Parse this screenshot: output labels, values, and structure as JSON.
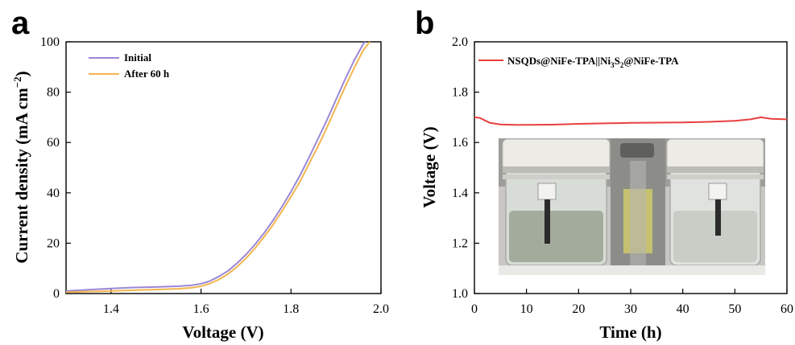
{
  "chart_data": [
    {
      "panel": "a",
      "type": "line",
      "xlabel": "Voltage (V)",
      "ylabel": "Current density (mA cm⁻²)",
      "xlim": [
        1.3,
        2.0
      ],
      "ylim": [
        0,
        100
      ],
      "x_ticks": [
        "1.4",
        "1.6",
        "1.8",
        "2.0"
      ],
      "y_ticks": [
        "0",
        "20",
        "40",
        "60",
        "80",
        "100"
      ],
      "legend_position": "top-left",
      "series": [
        {
          "name": "Initial",
          "color": "#9b86d6",
          "x": [
            1.3,
            1.35,
            1.4,
            1.45,
            1.5,
            1.55,
            1.58,
            1.6,
            1.62,
            1.64,
            1.66,
            1.68,
            1.7,
            1.72,
            1.74,
            1.76,
            1.78,
            1.8,
            1.82,
            1.84,
            1.86,
            1.88,
            1.9,
            1.92,
            1.94,
            1.96,
            1.965
          ],
          "y": [
            1.0,
            1.5,
            2.0,
            2.4,
            2.6,
            2.9,
            3.3,
            3.9,
            5.0,
            6.8,
            9.0,
            12.0,
            15.5,
            19.5,
            24.0,
            29.0,
            34.5,
            40.5,
            47.0,
            54.0,
            61.5,
            69.0,
            77.0,
            85.0,
            92.5,
            99.0,
            100.0
          ]
        },
        {
          "name": "After 60 h",
          "color": "#f3b54e",
          "x": [
            1.3,
            1.35,
            1.4,
            1.45,
            1.5,
            1.55,
            1.58,
            1.6,
            1.62,
            1.64,
            1.66,
            1.68,
            1.7,
            1.72,
            1.74,
            1.76,
            1.78,
            1.8,
            1.82,
            1.84,
            1.86,
            1.88,
            1.9,
            1.92,
            1.94,
            1.96,
            1.975
          ],
          "y": [
            0.5,
            0.8,
            1.0,
            1.3,
            1.6,
            1.9,
            2.3,
            2.9,
            4.0,
            5.6,
            7.8,
            10.6,
            14.0,
            18.0,
            22.5,
            27.3,
            32.7,
            38.5,
            44.5,
            51.5,
            58.5,
            66.0,
            74.0,
            82.0,
            89.5,
            96.5,
            100.0
          ]
        }
      ]
    },
    {
      "panel": "b",
      "type": "line",
      "xlabel": "Time (h)",
      "ylabel": "Voltage (V)",
      "xlim": [
        0,
        60
      ],
      "ylim": [
        1.0,
        2.0
      ],
      "x_ticks": [
        "0",
        "10",
        "20",
        "30",
        "40",
        "50",
        "60"
      ],
      "y_ticks": [
        "1.0",
        "1.2",
        "1.4",
        "1.6",
        "1.8",
        "2.0"
      ],
      "legend_position": "top-left",
      "series": [
        {
          "name": "NSQDs@NiFe-TPA||Ni₃S₂@NiFe-TPA",
          "color": "#e8403f",
          "x": [
            0,
            1,
            2,
            3,
            5,
            8,
            10,
            15,
            20,
            25,
            30,
            35,
            40,
            45,
            50,
            53,
            55,
            57,
            60
          ],
          "y": [
            1.7,
            1.698,
            1.688,
            1.678,
            1.672,
            1.67,
            1.67,
            1.671,
            1.674,
            1.676,
            1.678,
            1.679,
            1.68,
            1.682,
            1.686,
            1.692,
            1.7,
            1.694,
            1.692
          ]
        }
      ],
      "inset": "photo-of-electrolyzer-cell"
    }
  ],
  "panel_letters": [
    "a",
    "b"
  ],
  "legend_a": {
    "initial_label": "Initial",
    "after_label": "After 60 h"
  },
  "legend_b": {
    "label_prefix": "NSQDs@NiFe-TPA||Ni",
    "sub1": "3",
    "label_mid": "S",
    "sub2": "2",
    "label_suffix": "@NiFe-TPA"
  },
  "ylabel_a": {
    "text": "Current density (mA cm",
    "sup": "−2",
    "close": ")"
  }
}
